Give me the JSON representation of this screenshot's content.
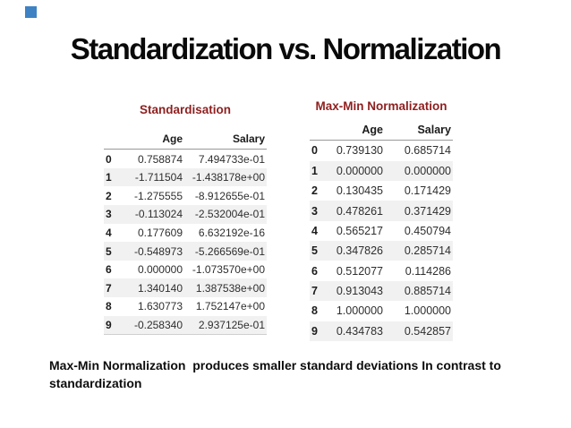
{
  "slide": {
    "title": "Standardization vs. Normalization",
    "caption": "Max-Min Normalization  produces smaller standard deviations In contrast to standardization"
  },
  "colors": {
    "accent": "#3e82c4",
    "table_title": "#8e1f1f",
    "stripe": "#f1f1f1"
  },
  "tables": [
    {
      "title": "Standardisation",
      "columns": [
        "Age",
        "Salary"
      ],
      "rows": [
        [
          "0",
          "0.758874",
          "7.494733e-01"
        ],
        [
          "1",
          "-1.711504",
          "-1.438178e+00"
        ],
        [
          "2",
          "-1.275555",
          "-8.912655e-01"
        ],
        [
          "3",
          "-0.113024",
          "-2.532004e-01"
        ],
        [
          "4",
          "0.177609",
          "6.632192e-16"
        ],
        [
          "5",
          "-0.548973",
          "-5.266569e-01"
        ],
        [
          "6",
          "0.000000",
          "-1.073570e+00"
        ],
        [
          "7",
          "1.340140",
          "1.387538e+00"
        ],
        [
          "8",
          "1.630773",
          "1.752147e+00"
        ],
        [
          "9",
          "-0.258340",
          "2.937125e-01"
        ]
      ]
    },
    {
      "title": "Max-Min Normalization",
      "columns": [
        "Age",
        "Salary"
      ],
      "rows": [
        [
          "0",
          "0.739130",
          "0.685714"
        ],
        [
          "1",
          "0.000000",
          "0.000000"
        ],
        [
          "2",
          "0.130435",
          "0.171429"
        ],
        [
          "3",
          "0.478261",
          "0.371429"
        ],
        [
          "4",
          "0.565217",
          "0.450794"
        ],
        [
          "5",
          "0.347826",
          "0.285714"
        ],
        [
          "6",
          "0.512077",
          "0.114286"
        ],
        [
          "7",
          "0.913043",
          "0.885714"
        ],
        [
          "8",
          "1.000000",
          "1.000000"
        ],
        [
          "9",
          "0.434783",
          "0.542857"
        ]
      ]
    }
  ]
}
